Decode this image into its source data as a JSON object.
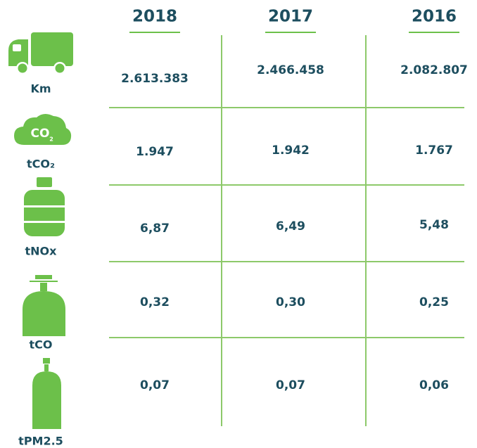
{
  "headers": [
    "2018",
    "2017",
    "2016"
  ],
  "icon_text": {
    "main": "CO",
    "sub": "2"
  },
  "rows": [
    {
      "label": "Km",
      "values": [
        "2.613.383",
        "2.466.458",
        "2.082.807"
      ]
    },
    {
      "label": "tCO₂",
      "values": [
        "1.947",
        "1.942",
        "1.767"
      ]
    },
    {
      "label": "tNOx",
      "values": [
        "6,87",
        "6,49",
        "5,48"
      ]
    },
    {
      "label": "tCO",
      "values": [
        "0,32",
        "0,30",
        "0,25"
      ]
    },
    {
      "label": "tPM2.5",
      "values": [
        "0,07",
        "0,07",
        "0,06"
      ]
    }
  ]
}
